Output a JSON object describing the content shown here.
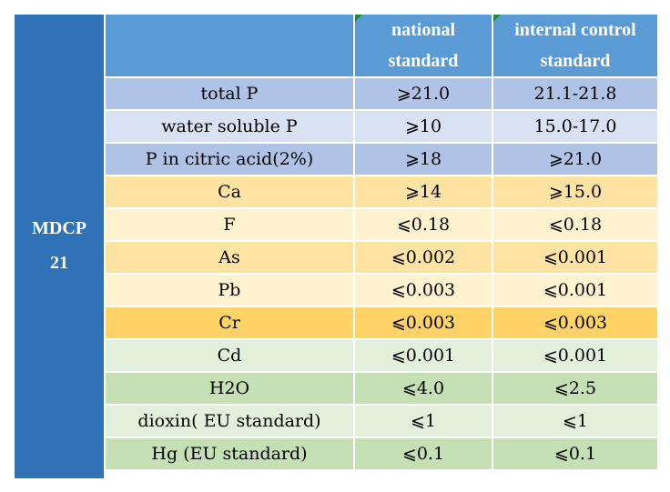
{
  "table": {
    "product": [
      "MDCP",
      "21"
    ],
    "headers": {
      "national": [
        "national",
        "standard"
      ],
      "internal": [
        "internal control",
        "standard"
      ]
    },
    "rows": [
      {
        "item": "total P",
        "national": "⩾21.0",
        "internal": "21.1-21.8",
        "color": "#aec3e6"
      },
      {
        "item": "water soluble P",
        "national": "⩾10",
        "internal": "15.0-17.0",
        "color": "#d9e2f3"
      },
      {
        "item": "P in citric acid(2%)",
        "national": "⩾18",
        "internal": "⩾21.0",
        "color": "#aec3e6"
      },
      {
        "item": "Ca",
        "national": "⩾14",
        "internal": "⩾15.0",
        "color": "#ffe3a3"
      },
      {
        "item": "F",
        "national": "⩽0.18",
        "internal": "⩽0.18",
        "color": "#fff2cf"
      },
      {
        "item": "As",
        "national": "⩽0.002",
        "internal": "⩽0.001",
        "color": "#ffe3a3"
      },
      {
        "item": "Pb",
        "national": "⩽0.003",
        "internal": "⩽0.001",
        "color": "#fff2cf"
      },
      {
        "item": "Cr",
        "national": "⩽0.003",
        "internal": "⩽0.003",
        "color": "#ffd366"
      },
      {
        "item": "Cd",
        "national": "⩽0.001",
        "internal": "⩽0.001",
        "color": "#e2efda"
      },
      {
        "item": "H2O",
        "national": "⩽4.0",
        "internal": "⩽2.5",
        "color": "#c5e0b4"
      },
      {
        "item": "dioxin( EU standard)",
        "national": "⩽1",
        "internal": "⩽1",
        "color": "#e2efda"
      },
      {
        "item": "Hg (EU standard)",
        "national": "⩽0.1",
        "internal": "⩽0.1",
        "color": "#c5e0b4"
      }
    ]
  }
}
